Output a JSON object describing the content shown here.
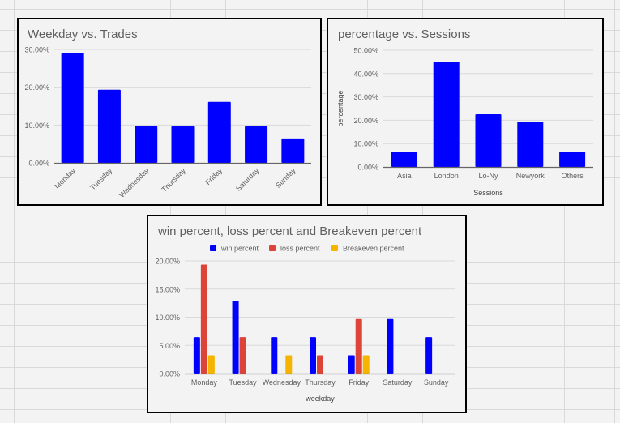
{
  "colors": {
    "win": "#0000ff",
    "loss": "#db4437",
    "breakeven": "#f4b400",
    "bar": "#0000ff",
    "gridline": "#d9d9d9",
    "axis": "#666666",
    "text": "#5f5f5f"
  },
  "chart_data": [
    {
      "type": "bar",
      "title": "Weekday vs. Trades",
      "xlabel": "",
      "ylabel": "",
      "categories": [
        "Monday",
        "Tuesday",
        "Wednesday",
        "Thursday",
        "Friday",
        "Saturday",
        "Sunday"
      ],
      "values": [
        29.03,
        19.35,
        9.68,
        9.68,
        16.13,
        9.68,
        6.45
      ],
      "ylim": [
        0,
        30
      ],
      "yticks": [
        0,
        10,
        20,
        30
      ],
      "ytick_labels": [
        "0.00%",
        "10.00%",
        "20.00%",
        "30.00%"
      ],
      "grid": true,
      "legend": "none"
    },
    {
      "type": "bar",
      "title": "percentage vs. Sessions",
      "xlabel": "Sessions",
      "ylabel": "percentage",
      "categories": [
        "Asia",
        "London",
        "Lo-Ny",
        "Newyork",
        "Others"
      ],
      "values": [
        6.45,
        45.16,
        22.58,
        19.35,
        6.45
      ],
      "ylim": [
        0,
        50
      ],
      "yticks": [
        0,
        10,
        20,
        30,
        40,
        50
      ],
      "ytick_labels": [
        "0.00%",
        "10.00%",
        "20.00%",
        "30.00%",
        "40.00%",
        "50.00%"
      ],
      "grid": true,
      "legend": "none"
    },
    {
      "type": "bar",
      "title": "win percent, loss percent and Breakeven percent",
      "xlabel": "weekday",
      "ylabel": "",
      "categories": [
        "Monday",
        "Tuesday",
        "Wednesday",
        "Thursday",
        "Friday",
        "Saturday",
        "Sunday"
      ],
      "series": [
        {
          "name": "win percent",
          "values": [
            6.45,
            12.9,
            6.45,
            6.45,
            3.23,
            9.68,
            6.45
          ]
        },
        {
          "name": "loss percent",
          "values": [
            19.35,
            6.45,
            0,
            3.23,
            9.68,
            0,
            0
          ]
        },
        {
          "name": "Breakeven percent",
          "values": [
            3.23,
            0,
            3.23,
            0,
            3.23,
            0,
            0
          ]
        }
      ],
      "ylim": [
        0,
        20
      ],
      "yticks": [
        0,
        5,
        10,
        15,
        20
      ],
      "ytick_labels": [
        "0.00%",
        "5.00%",
        "10.00%",
        "15.00%",
        "20.00%"
      ],
      "grid": true,
      "legend": "top"
    }
  ]
}
